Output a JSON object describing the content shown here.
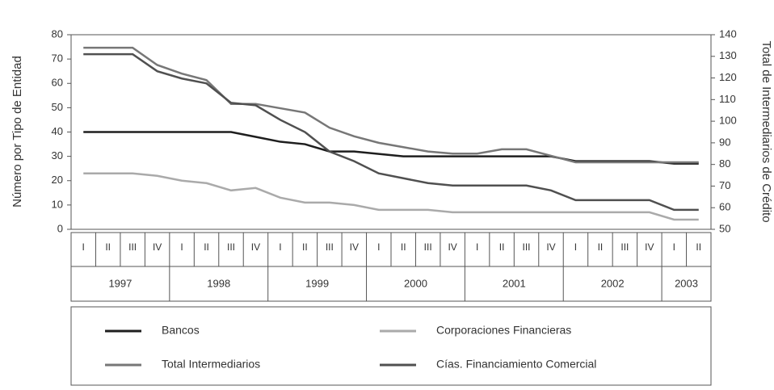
{
  "chart_data": {
    "type": "line",
    "y_label": "Número por Tipo de Entidad",
    "y2_label": "Total de Intermediarios de Crédito",
    "categories": [
      "I",
      "II",
      "III",
      "IV",
      "I",
      "II",
      "III",
      "IV",
      "I",
      "II",
      "III",
      "IV",
      "I",
      "II",
      "III",
      "IV",
      "I",
      "II",
      "III",
      "IV",
      "I",
      "II",
      "III",
      "IV",
      "I",
      "II"
    ],
    "years": [
      "1997",
      "1998",
      "1999",
      "2000",
      "2001",
      "2002",
      "2003"
    ],
    "ylim": [
      0,
      80
    ],
    "yticks": [
      0,
      10,
      20,
      30,
      40,
      50,
      60,
      70,
      80
    ],
    "y2lim": [
      50,
      140
    ],
    "y2ticks": [
      50,
      60,
      70,
      80,
      90,
      100,
      110,
      120,
      130,
      140
    ],
    "series": [
      {
        "name": "Bancos",
        "color": "#1e1e1e",
        "values": [
          40,
          40,
          40,
          40,
          40,
          40,
          40,
          38,
          36,
          35,
          32,
          32,
          31,
          30,
          30,
          30,
          30,
          30,
          30,
          30,
          28,
          28,
          28,
          28,
          27,
          27
        ]
      },
      {
        "name": "Corporaciones Financieras",
        "color": "#aaaaaa",
        "values": [
          23,
          23,
          23,
          22,
          20,
          19,
          16,
          17,
          13,
          11,
          11,
          10,
          8,
          8,
          8,
          7,
          7,
          7,
          7,
          7,
          7,
          7,
          7,
          7,
          4,
          4
        ]
      },
      {
        "name": "Total Intermediarios",
        "color": "#777777",
        "axis": "y2",
        "values": [
          134,
          134,
          134,
          126,
          122,
          119,
          108,
          108,
          106,
          104,
          97,
          93,
          90,
          88,
          86,
          85,
          85,
          87,
          87,
          84,
          81,
          81,
          81,
          81,
          81,
          81
        ]
      },
      {
        "name": "Cías. Financiamiento Comercial",
        "color": "#505050",
        "values": [
          72,
          72,
          72,
          65,
          62,
          60,
          52,
          51,
          45,
          40,
          32,
          28,
          23,
          21,
          19,
          18,
          18,
          18,
          18,
          16,
          12,
          12,
          12,
          12,
          8,
          8
        ]
      }
    ]
  }
}
